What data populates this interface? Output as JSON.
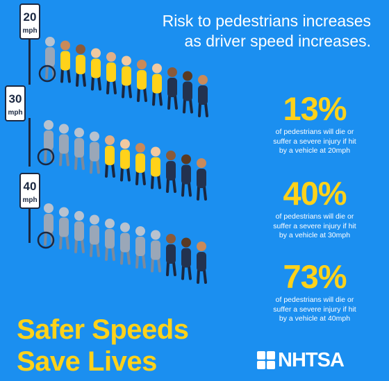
{
  "headline": {
    "line1": "Risk to pedestrians increases",
    "line2": "as driver speed increases."
  },
  "speed_signs": [
    {
      "value": "20",
      "unit": "mph"
    },
    {
      "value": "30",
      "unit": "mph"
    },
    {
      "value": "40",
      "unit": "mph"
    }
  ],
  "stats": [
    {
      "percent": "13%",
      "line1": "of pedestrians will die or",
      "line2": "suffer a severe injury if hit",
      "line3": "by a vehicle at 20mph"
    },
    {
      "percent": "40%",
      "line1": "of pedestrians will die or",
      "line2": "suffer a severe injury if hit",
      "line3": "by a vehicle at 30mph"
    },
    {
      "percent": "73%",
      "line1": "of pedestrians will die or",
      "line2": "suffer a severe injury if hit",
      "line3": "by a vehicle at 40mph"
    }
  ],
  "slogan": {
    "line1": "Safer Speeds",
    "line2": "Save Lives"
  },
  "logo": {
    "text": "NHTSA"
  },
  "colors": {
    "background": "#1b8ff0",
    "accent_yellow": "#ffd21a",
    "affected_gray": "#9aa7b8",
    "text_white": "#ffffff"
  },
  "pedestrian_rows": [
    {
      "speed": "20mph",
      "affected_count": 1,
      "total": 11
    },
    {
      "speed": "30mph",
      "affected_count": 4,
      "total": 11
    },
    {
      "speed": "40mph",
      "affected_count": 8,
      "total": 11
    }
  ]
}
